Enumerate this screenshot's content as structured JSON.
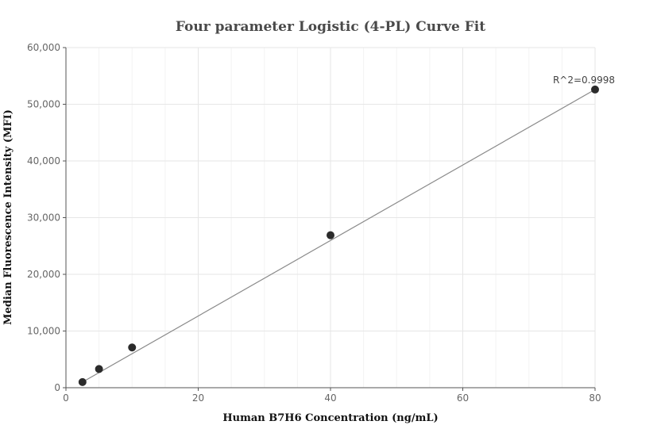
{
  "chart_data": {
    "type": "scatter",
    "title": "Four parameter Logistic (4-PL) Curve Fit",
    "xlabel": "Human B7H6 Concentration (ng/mL)",
    "ylabel": "Median Fluorescence Intensity (MFI)",
    "xlim": [
      0,
      80
    ],
    "ylim": [
      0,
      60000
    ],
    "x_ticks": [
      0,
      20,
      40,
      60,
      80
    ],
    "y_ticks": [
      0,
      10000,
      20000,
      30000,
      40000,
      50000,
      60000
    ],
    "x_tick_labels": [
      "0",
      "20",
      "40",
      "60",
      "80"
    ],
    "y_tick_labels": [
      "0",
      "10,000",
      "20,000",
      "30,000",
      "40,000",
      "50,000",
      "60,000"
    ],
    "grid": true,
    "series": [
      {
        "x": [
          2.5,
          5,
          10,
          40,
          80
        ],
        "y": [
          1000,
          3300,
          7100,
          26900,
          52600
        ]
      }
    ],
    "fit_curve": {
      "x": [
        2.5,
        80
      ],
      "y": [
        1000,
        52600
      ]
    },
    "annotation": "R^2=0.9998",
    "colors": {
      "points": "#2b2b2b",
      "fit_line": "#8a8a8a"
    }
  }
}
